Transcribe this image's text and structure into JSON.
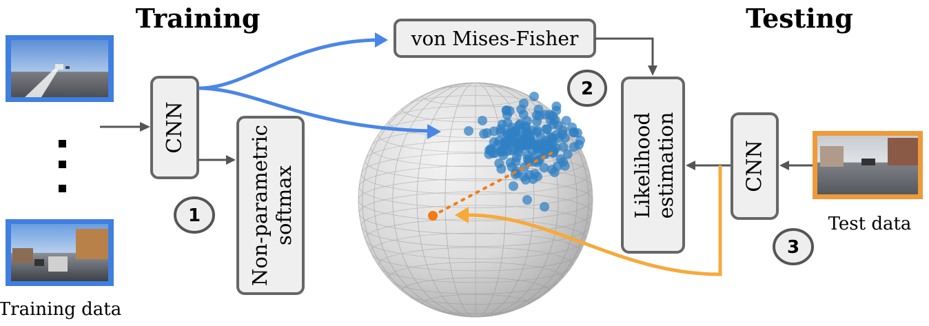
{
  "headings": {
    "training": "Training",
    "testing": "Testing"
  },
  "boxes": {
    "cnn_train": "CNN",
    "vmf": "von Mises-Fisher",
    "softmax_line1": "Non-parametric",
    "softmax_line2": "softmax",
    "likelihood_line1": "Likelihood",
    "likelihood_line2": "estimation",
    "cnn_test": "CNN"
  },
  "steps": {
    "one": "1",
    "two": "2",
    "three": "3"
  },
  "captions": {
    "training_data": "Training data",
    "test_data": "Test data"
  },
  "colors": {
    "blue": "#4a86e8",
    "orange": "#f7a93a",
    "gray_arrow": "#555555",
    "box_fill": "#efefef",
    "box_stroke": "#666666",
    "dot_blue": "#2f7fc4",
    "dot_orange": "#f37b12"
  }
}
